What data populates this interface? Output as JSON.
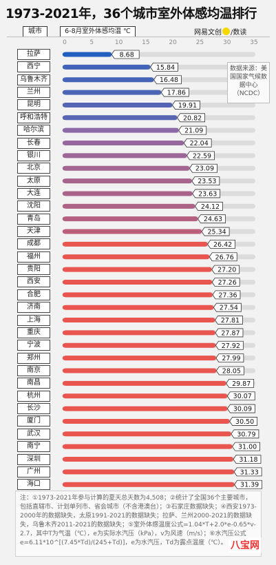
{
  "title": "1973-2021年，36个城市室外体感均温排行",
  "header": {
    "city_label": "城市",
    "metric_label": "6-8月室外体感均温 ℃",
    "brand_left": "网易",
    "brand_mid": "文创",
    "brand_right": "/数读"
  },
  "source_box": "数据来源：美国国家气候数据中心（NCDC）",
  "note": "注：①1973-2021年参与计算的夏天总天数为4,508；②统计了全国36个主要城市，包括直辖市、计划单列市、省会城市（不含港澳台）；③石家庄数据缺失；④西安1973-2000年的数据缺失，太原1991-2021的数据缺失；拉萨、兰州2000-2021的数据缺失，乌鲁木齐2011-2021的数据缺失；⑤室外体感温度公式=1.04*T+2.0*e-0.65*v-2.7，其中T为气温（℃），e为实际水汽压（kPa），v为风速（m/s）；⑥水汽压公式e=6.11*10^[(7.45*Td)/(245+Td)]，e为水汽压，Td为露点温度（℃）。",
  "watermark": "八宝网",
  "chart_data": {
    "type": "bar",
    "orientation": "horizontal",
    "title": "1973-2021年，36个城市室外体感均温排行",
    "xlabel": "6-8月室外体感均温 ℃",
    "xlim": [
      0,
      35
    ],
    "xticks": [
      0,
      5,
      10,
      15,
      20,
      25,
      30,
      35
    ],
    "categories": [
      "拉萨",
      "西宁",
      "乌鲁木齐",
      "兰州",
      "昆明",
      "呼和浩特",
      "哈尔滨",
      "长春",
      "银川",
      "北京",
      "太原",
      "大连",
      "沈阳",
      "青岛",
      "天津",
      "成都",
      "福州",
      "贵阳",
      "西安",
      "合肥",
      "济南",
      "上海",
      "重庆",
      "宁波",
      "郑州",
      "南京",
      "南昌",
      "杭州",
      "长沙",
      "厦门",
      "武汉",
      "南宁",
      "深圳",
      "广州",
      "海口"
    ],
    "values": [
      8.68,
      15.84,
      16.48,
      17.86,
      19.91,
      20.82,
      21.09,
      22.04,
      22.59,
      23.09,
      23.53,
      23.63,
      24.12,
      24.63,
      25.34,
      26.42,
      26.76,
      27.2,
      27.26,
      27.36,
      27.54,
      27.81,
      27.87,
      27.92,
      27.99,
      28.05,
      29.87,
      30.07,
      30.09,
      30.5,
      30.79,
      31.0,
      31.18,
      31.33,
      31.39
    ],
    "value_labels": [
      "8.68",
      "15.84",
      "16.48",
      "17.86",
      "19.91",
      "20.82",
      "21.09",
      "22.04",
      "22.59",
      "23.09",
      "23.53",
      "23.63",
      "24.12",
      "24.63",
      "25.34",
      "26.42",
      "26.76",
      "27.20",
      "27.26",
      "27.36",
      "27.54",
      "27.81",
      "27.87",
      "27.92",
      "27.99",
      "28.05",
      "29.87",
      "30.07",
      "30.09",
      "30.50",
      "30.79",
      "31.00",
      "31.18",
      "31.33",
      "31.39"
    ],
    "colors": {
      "track": "#dcdcdc",
      "cool": "#1f5fbf",
      "mid": "#8a6aa8",
      "warm": "#e9554f"
    }
  }
}
